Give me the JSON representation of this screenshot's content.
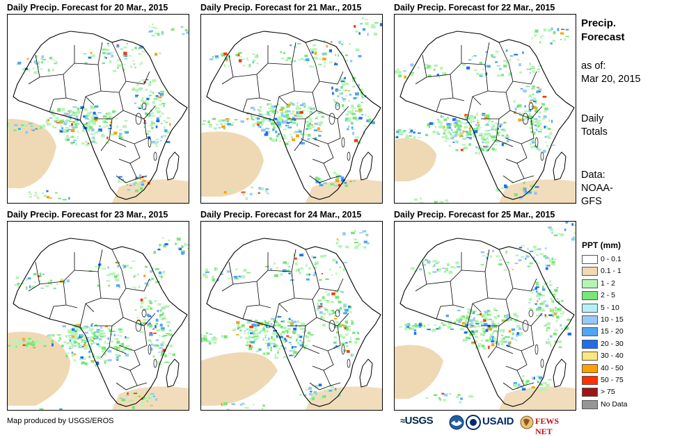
{
  "panels": [
    {
      "title": "Daily Precip. Forecast for 20 Mar., 2015"
    },
    {
      "title": "Daily Precip. Forecast for 21 Mar., 2015"
    },
    {
      "title": "Daily Precip. Forecast for 22 Mar., 2015"
    },
    {
      "title": "Daily Precip. Forecast for 23 Mar., 2015"
    },
    {
      "title": "Daily Precip. Forecast for 24 Mar., 2015"
    },
    {
      "title": "Daily Precip. Forecast for 25 Mar., 2015"
    }
  ],
  "info": {
    "title_line1": "Precip.",
    "title_line2": "Forecast",
    "asof_label": "as of:",
    "asof_date": "Mar 20, 2015",
    "totals_line1": "Daily",
    "totals_line2": "Totals",
    "data_line1": "Data:",
    "data_line2": "NOAA-",
    "data_line3": "GFS"
  },
  "legend": {
    "title": "PPT (mm)",
    "items": [
      {
        "label": "0 - 0.1",
        "color": "#ffffff"
      },
      {
        "label": "0.1 - 1",
        "color": "#efd9b4"
      },
      {
        "label": "1 - 2",
        "color": "#b4f5b4"
      },
      {
        "label": "2 - 5",
        "color": "#78e678"
      },
      {
        "label": "5 - 10",
        "color": "#b4f0fa"
      },
      {
        "label": "10 - 15",
        "color": "#96c8fa"
      },
      {
        "label": "15 - 20",
        "color": "#50a5f5"
      },
      {
        "label": "20 - 30",
        "color": "#1e6eeb"
      },
      {
        "label": "30 - 40",
        "color": "#ffe678"
      },
      {
        "label": "40 - 50",
        "color": "#ffa000"
      },
      {
        "label": "50 - 75",
        "color": "#ff3200"
      },
      {
        "label": "> 75",
        "color": "#a01414"
      },
      {
        "label": "No Data",
        "color": "#969696"
      }
    ]
  },
  "footer": {
    "credit": "Map produced by USGS/EROS",
    "logo_usgs": "USGS",
    "logo_usaid": "USAID",
    "logo_fews": "FEWS NET"
  },
  "colors": {
    "land_bg": "#ffffff",
    "border": "#000000"
  }
}
